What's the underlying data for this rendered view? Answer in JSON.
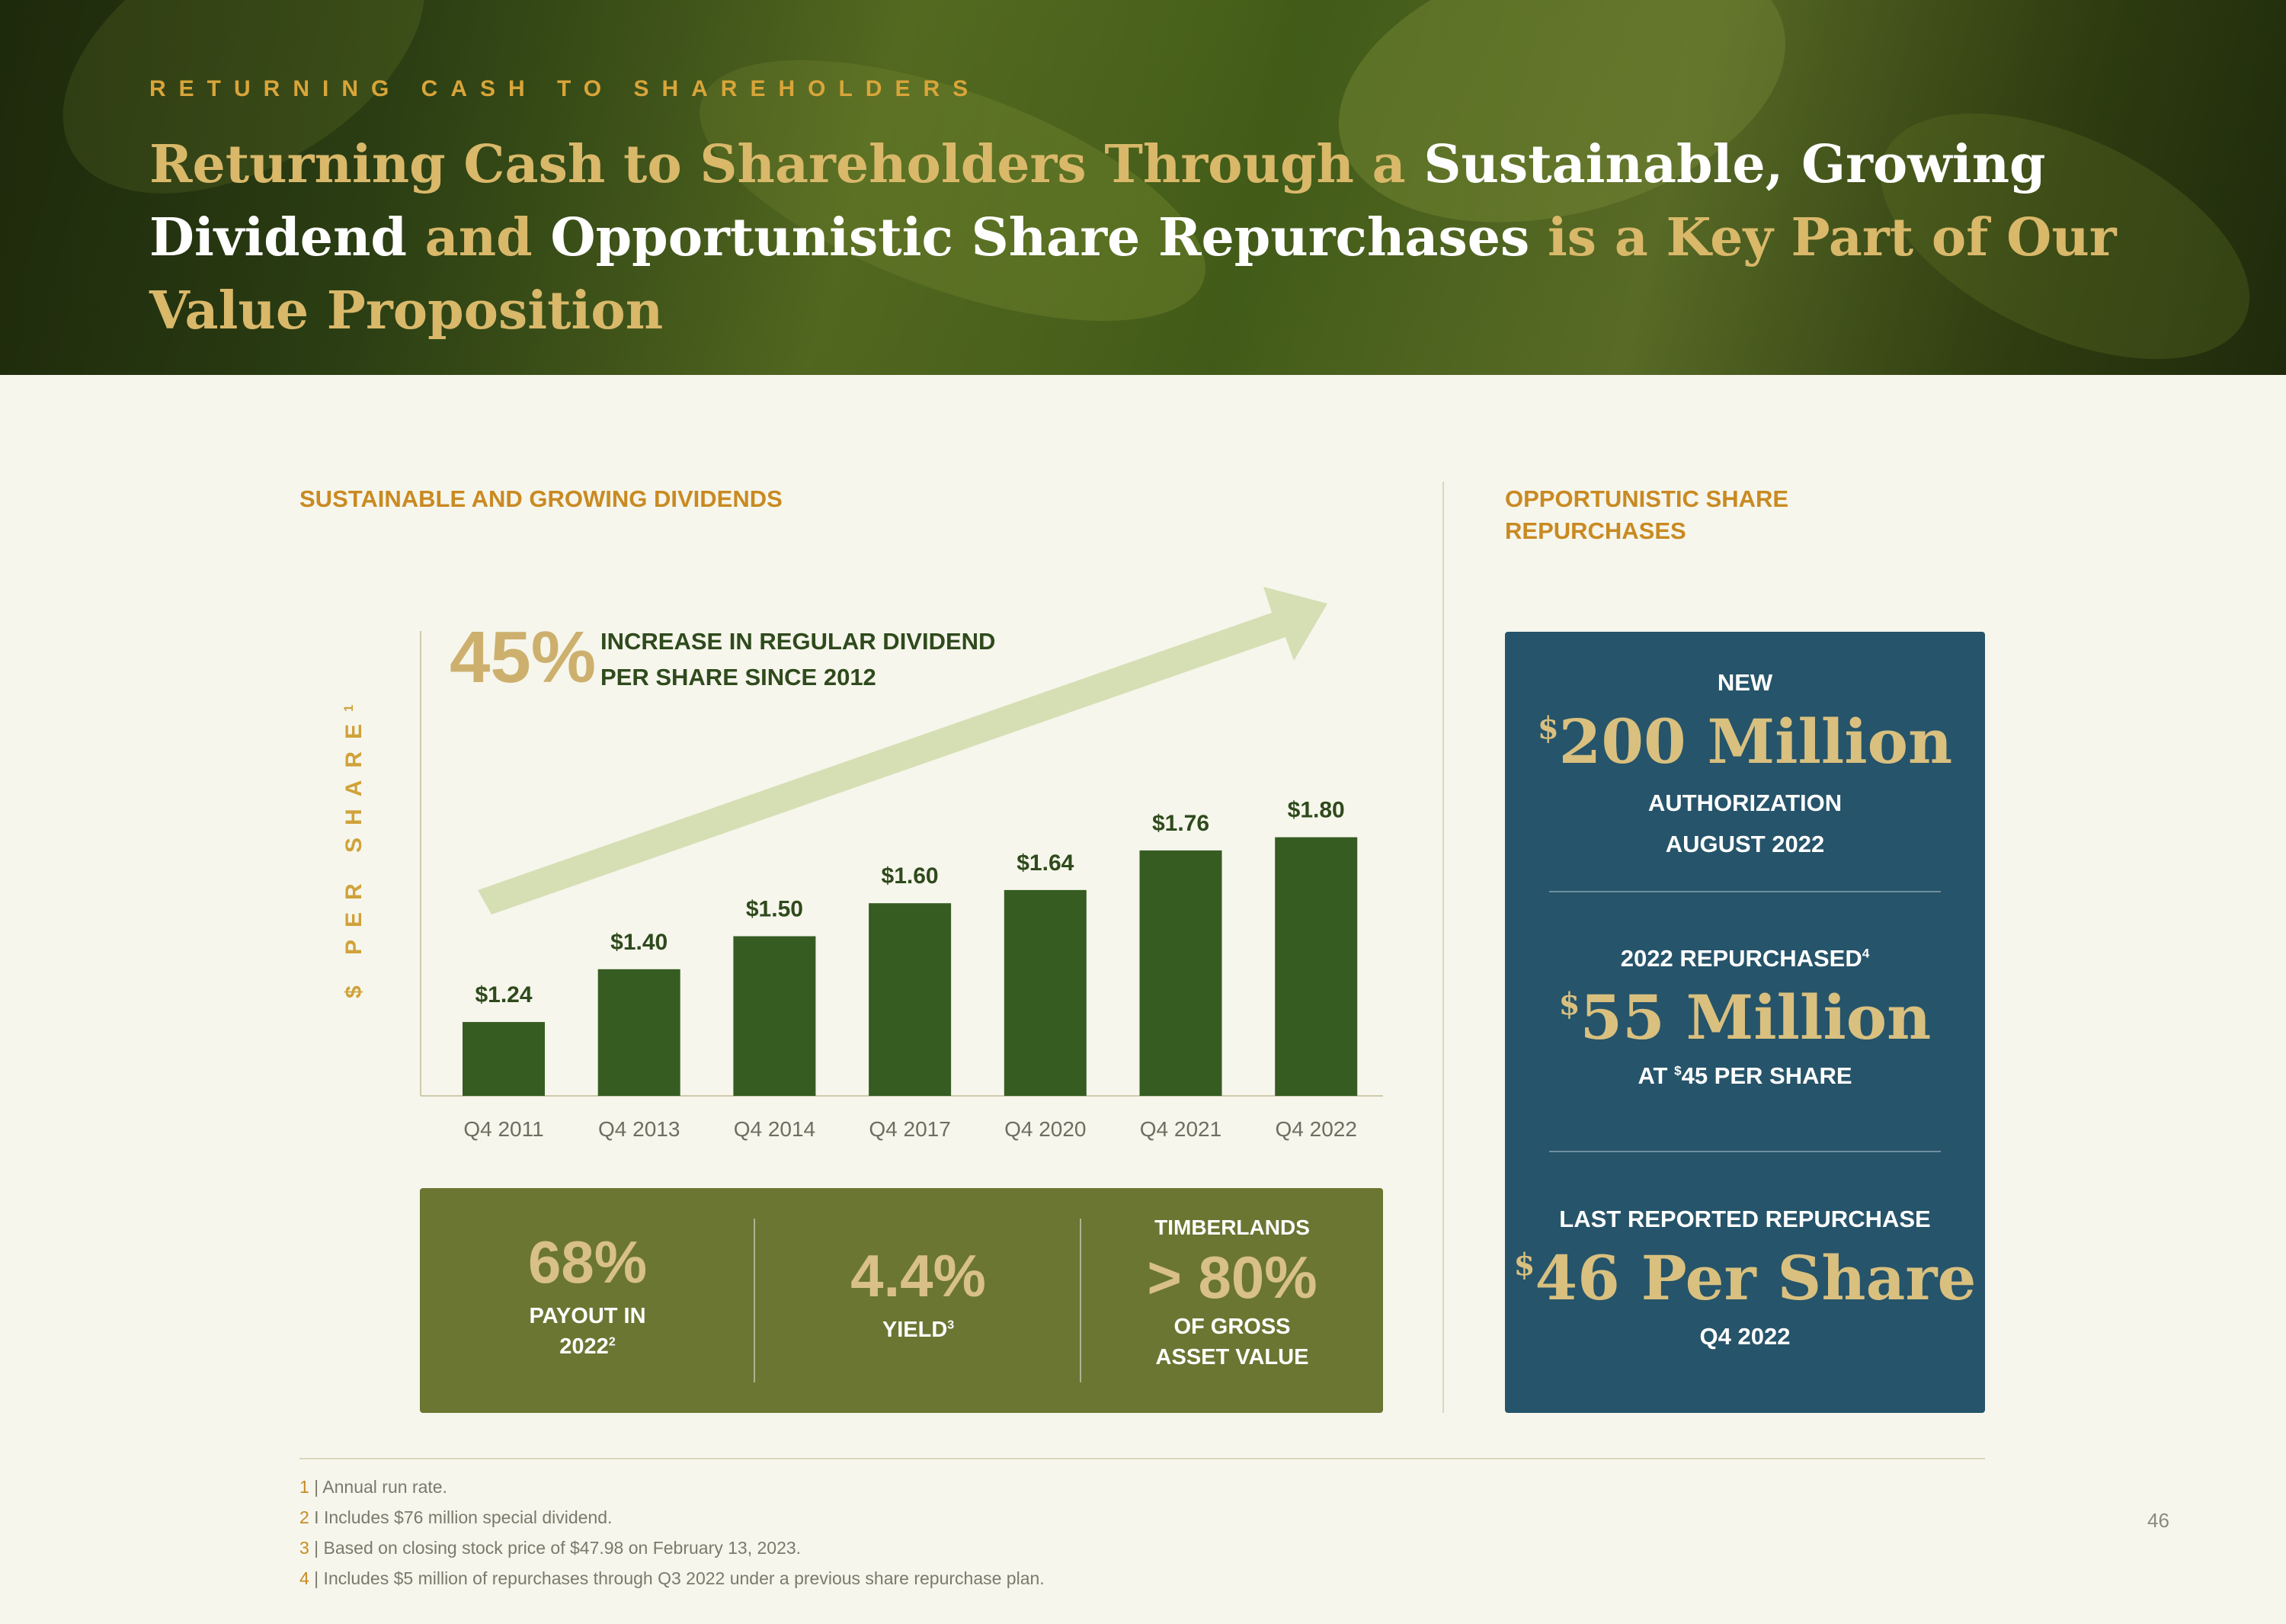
{
  "header": {
    "eyebrow": "RETURNING CASH TO SHAREHOLDERS",
    "headline": {
      "part1": "Returning Cash to Shareholders Through a ",
      "part2": "Sustainable, Growing Dividend",
      "part3": " and ",
      "part4": "Opportunistic Share Repurchases",
      "part5": " is a Key Part of Our Value Proposition"
    }
  },
  "left_section": {
    "title": "SUSTAINABLE AND GROWING DIVIDENDS",
    "highlight_value": "45%",
    "highlight_text": "INCREASE IN REGULAR DIVIDEND PER SHARE SINCE 2012"
  },
  "chart_data": {
    "type": "bar",
    "categories": [
      "Q4 2011",
      "Q4 2013",
      "Q4 2014",
      "Q4 2017",
      "Q4 2020",
      "Q4 2021",
      "Q4 2022"
    ],
    "values": [
      1.24,
      1.4,
      1.5,
      1.6,
      1.64,
      1.76,
      1.8
    ],
    "data_labels": [
      "$1.24",
      "$1.40",
      "$1.50",
      "$1.60",
      "$1.64",
      "$1.76",
      "$1.80"
    ],
    "ylabel": "$ PER SHARE",
    "ylabel_footnote": "1",
    "bar_color": "#365c22",
    "arrow_color": "#d6dfb4",
    "grid": false
  },
  "stats": {
    "payout": {
      "value": "68%",
      "label1": "PAYOUT IN",
      "label2": "2022",
      "footnote": "2"
    },
    "yield": {
      "value": "4.4%",
      "label": "YIELD",
      "footnote": "3"
    },
    "timberlands": {
      "prefix": "TIMBERLANDS",
      "value": "> 80%",
      "label1": "OF GROSS",
      "label2": "ASSET VALUE"
    }
  },
  "right_section": {
    "title_line1": "OPPORTUNISTIC SHARE",
    "title_line2": "REPURCHASES",
    "authorization": {
      "top": "NEW",
      "currency": "$",
      "amount": "200 Million",
      "line1": "AUTHORIZATION",
      "line2": "AUGUST 2022"
    },
    "repurchased": {
      "top": "2022 REPURCHASED",
      "footnote": "4",
      "currency": "$",
      "amount": "55 Million",
      "bottom_pre": "AT ",
      "bottom_currency": "$",
      "bottom_post": "45 PER SHARE"
    },
    "last": {
      "top": "LAST REPORTED REPURCHASE",
      "currency": "$",
      "amount": "46 Per Share",
      "bottom": "Q4 2022"
    }
  },
  "footnotes": [
    {
      "num": "1",
      "text": " | Annual run rate."
    },
    {
      "num": "2",
      "text": " I Includes $76 million special dividend."
    },
    {
      "num": "3",
      "text": " | Based on closing stock price of $47.98 on February 13, 2023."
    },
    {
      "num": "4",
      "text": " | Includes $5 million of repurchases through Q3 2022 under a previous share repurchase plan."
    }
  ],
  "page_number": "46",
  "colors": {
    "accent_gold": "#c98a22",
    "dark_green": "#365c22",
    "olive": "#6a7632",
    "teal": "#26546a",
    "background": "#f6f6ec"
  }
}
